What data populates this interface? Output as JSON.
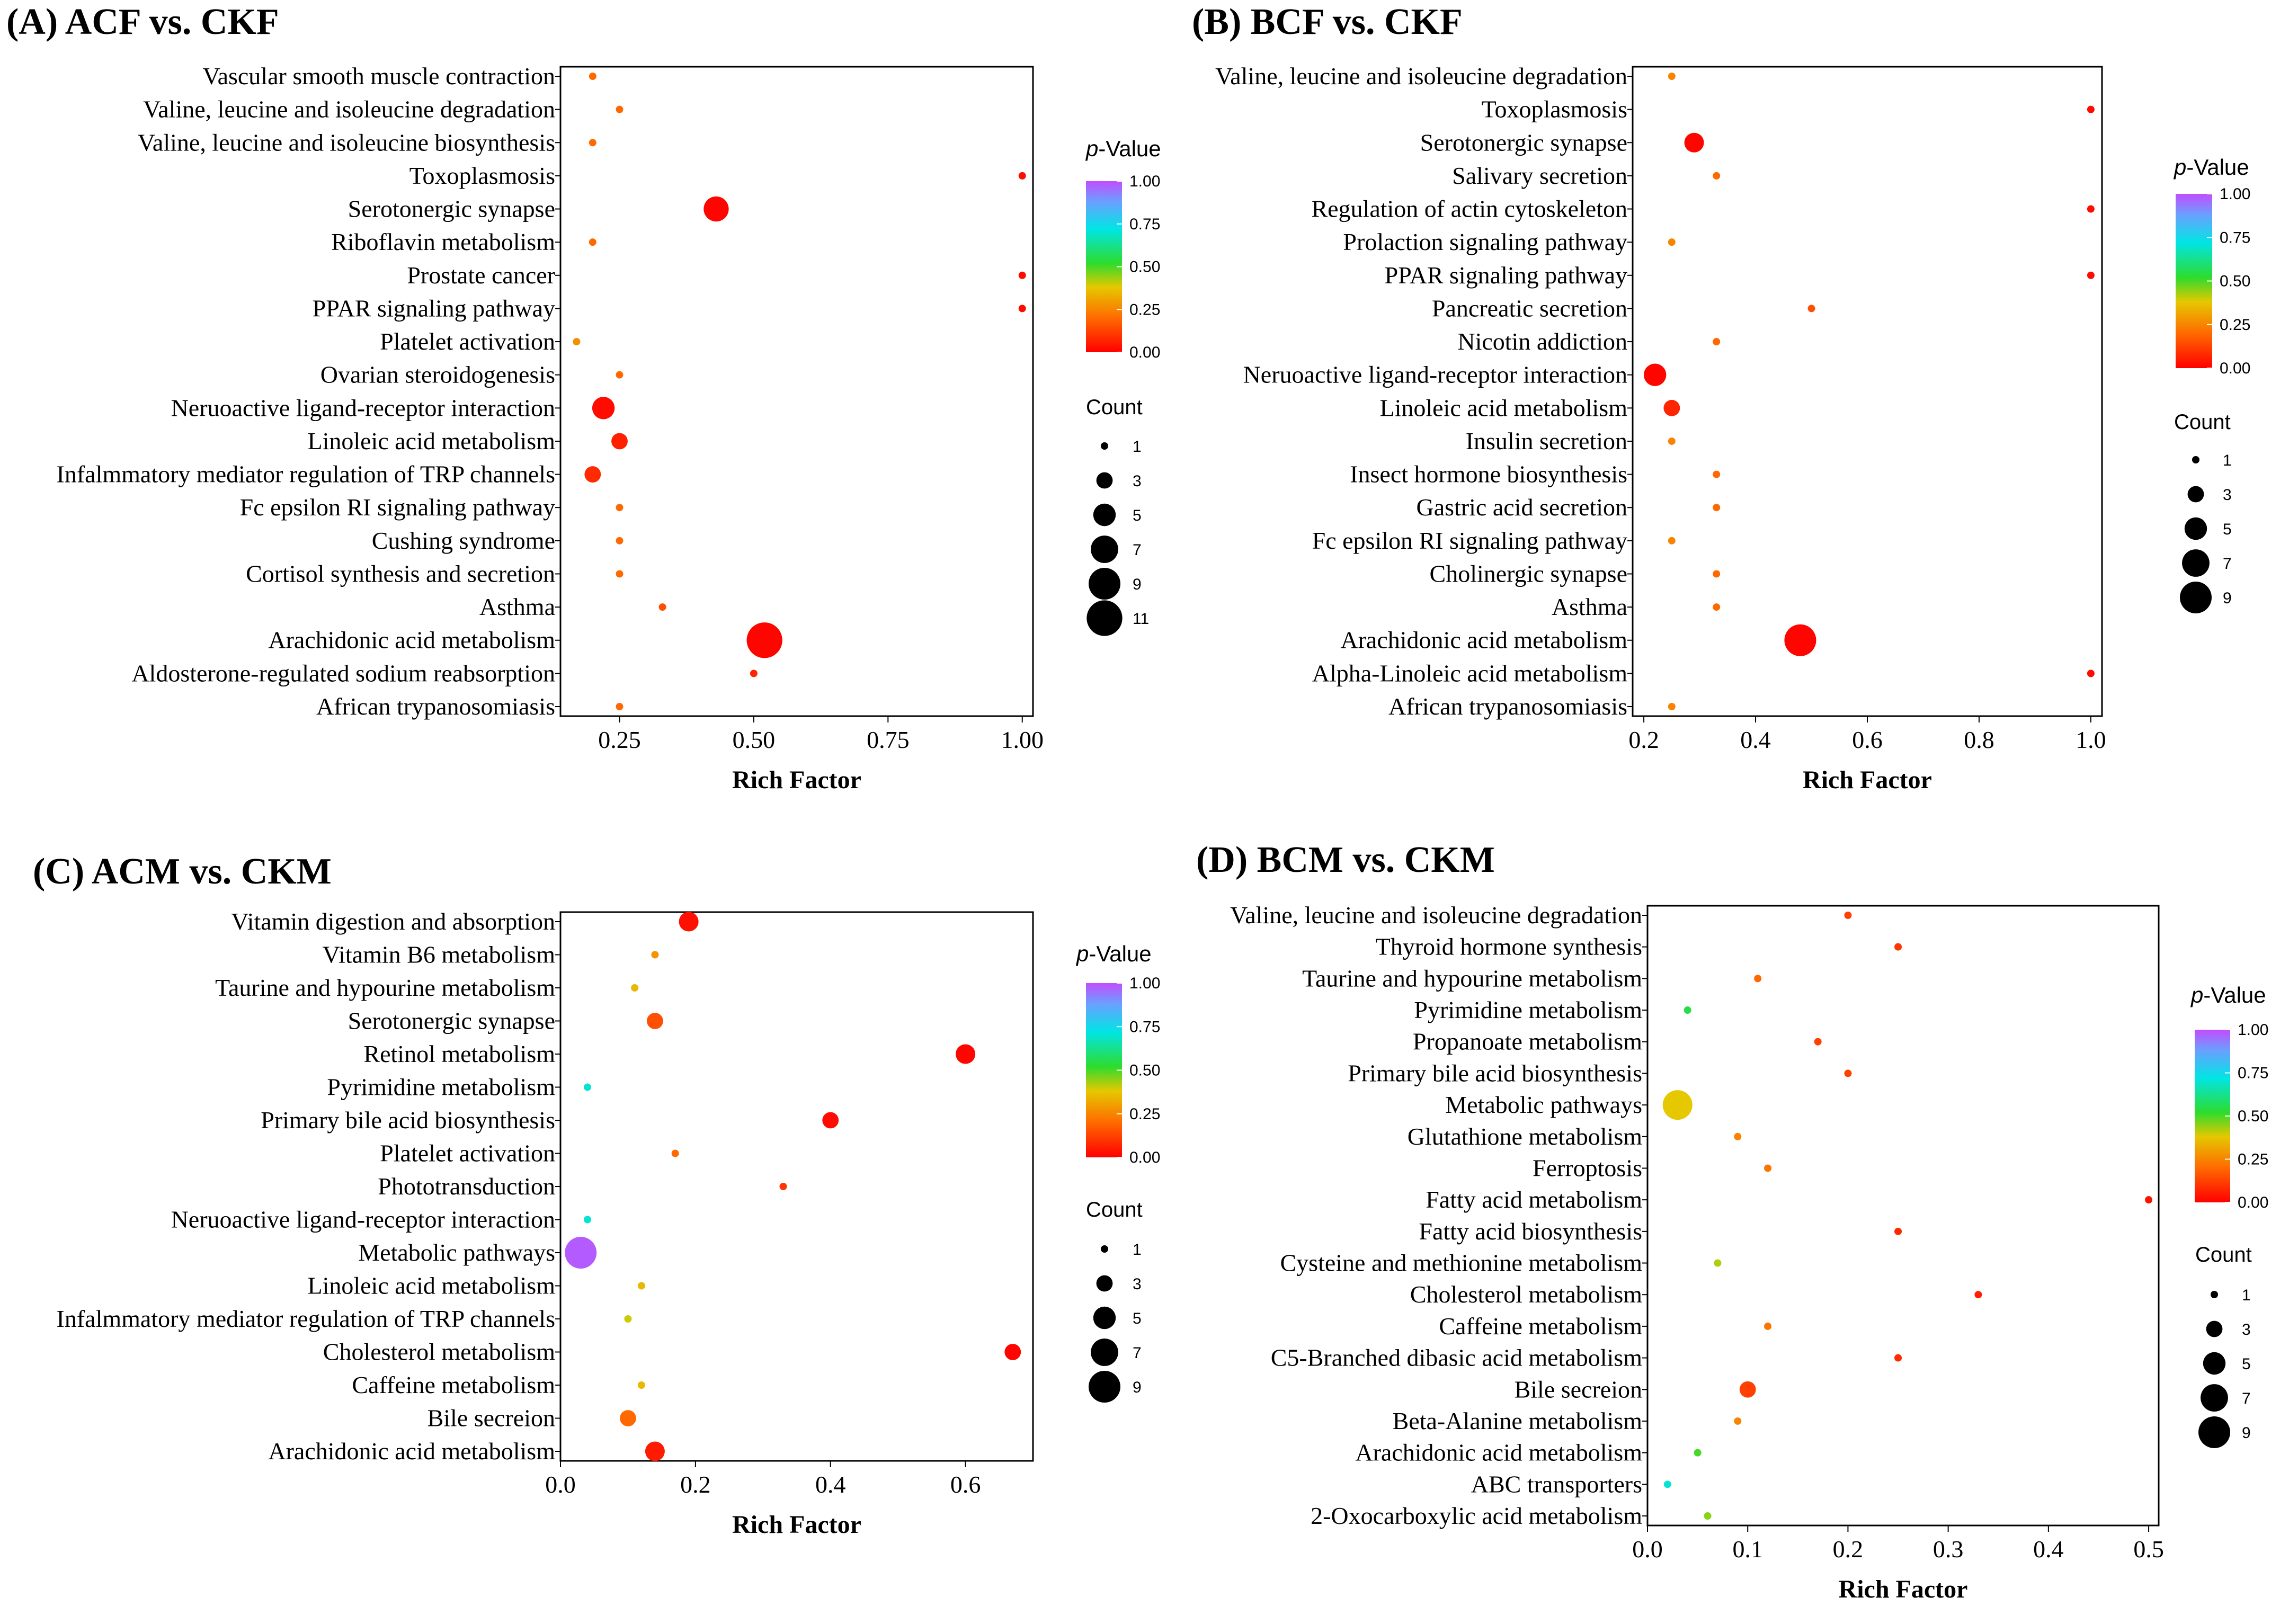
{
  "chart_data": [
    {
      "type": "scatter",
      "title": "(A) ACF vs. CKF",
      "xlabel": "Rich Factor",
      "ylabel": "",
      "xlim": [
        0.14,
        1.02
      ],
      "xticks": [
        "0.25",
        "0.50",
        "0.75",
        "1.00"
      ],
      "xtick_values": [
        0.25,
        0.5,
        0.75,
        1.0
      ],
      "color_legend": {
        "title_prefix": "p",
        "title_suffix": "-Value",
        "ticks": [
          "1.00",
          "0.75",
          "0.50",
          "0.25",
          "0.00"
        ]
      },
      "size_legend": {
        "title": "Count",
        "labels": [
          "1",
          "3",
          "5",
          "7",
          "9",
          "11"
        ],
        "values": [
          1,
          3,
          5,
          7,
          9,
          11
        ]
      },
      "points": [
        {
          "pathway": "Vascular smooth muscle contraction",
          "rich_factor": 0.2,
          "p_value": 0.2,
          "count": 1
        },
        {
          "pathway": "Valine, leucine and isoleucine degradation",
          "rich_factor": 0.25,
          "p_value": 0.2,
          "count": 1
        },
        {
          "pathway": "Valine, leucine and isoleucine biosynthesis",
          "rich_factor": 0.2,
          "p_value": 0.2,
          "count": 1
        },
        {
          "pathway": "Toxoplasmosis",
          "rich_factor": 1.0,
          "p_value": 0.02,
          "count": 1
        },
        {
          "pathway": "Serotonergic synapse",
          "rich_factor": 0.43,
          "p_value": 0.01,
          "count": 6
        },
        {
          "pathway": "Riboflavin metabolism",
          "rich_factor": 0.2,
          "p_value": 0.2,
          "count": 1
        },
        {
          "pathway": "Prostate cancer",
          "rich_factor": 1.0,
          "p_value": 0.02,
          "count": 1
        },
        {
          "pathway": "PPAR signaling pathway",
          "rich_factor": 1.0,
          "p_value": 0.02,
          "count": 1
        },
        {
          "pathway": "Platelet activation",
          "rich_factor": 0.17,
          "p_value": 0.27,
          "count": 1
        },
        {
          "pathway": "Ovarian steroidogenesis",
          "rich_factor": 0.25,
          "p_value": 0.2,
          "count": 1
        },
        {
          "pathway": "Neruoactive ligand-receptor interaction",
          "rich_factor": 0.22,
          "p_value": 0.02,
          "count": 5
        },
        {
          "pathway": "Linoleic acid metabolism",
          "rich_factor": 0.25,
          "p_value": 0.06,
          "count": 3
        },
        {
          "pathway": "Infalmmatory mediator regulation of TRP channels",
          "rich_factor": 0.2,
          "p_value": 0.08,
          "count": 3
        },
        {
          "pathway": "Fc epsilon RI signaling pathway",
          "rich_factor": 0.25,
          "p_value": 0.2,
          "count": 1
        },
        {
          "pathway": "Cushing syndrome",
          "rich_factor": 0.25,
          "p_value": 0.2,
          "count": 1
        },
        {
          "pathway": "Cortisol synthesis and secretion",
          "rich_factor": 0.25,
          "p_value": 0.2,
          "count": 1
        },
        {
          "pathway": "Asthma",
          "rich_factor": 0.33,
          "p_value": 0.15,
          "count": 1
        },
        {
          "pathway": "Arachidonic acid metabolism",
          "rich_factor": 0.52,
          "p_value": 0.01,
          "count": 11
        },
        {
          "pathway": "Aldosterone-regulated sodium reabsorption",
          "rich_factor": 0.5,
          "p_value": 0.07,
          "count": 1
        },
        {
          "pathway": "African trypanosomiasis",
          "rich_factor": 0.25,
          "p_value": 0.2,
          "count": 1
        }
      ]
    },
    {
      "type": "scatter",
      "title": "(B) BCF vs. CKF",
      "xlabel": "Rich Factor",
      "ylabel": "",
      "xlim": [
        0.18,
        1.02
      ],
      "xticks": [
        "0.2",
        "0.4",
        "0.6",
        "0.8",
        "1.0"
      ],
      "xtick_values": [
        0.2,
        0.4,
        0.6,
        0.8,
        1.0
      ],
      "color_legend": {
        "title_prefix": "p",
        "title_suffix": "-Value",
        "ticks": [
          "1.00",
          "0.75",
          "0.50",
          "0.25",
          "0.00"
        ]
      },
      "size_legend": {
        "title": "Count",
        "labels": [
          "1",
          "3",
          "5",
          "7",
          "9"
        ],
        "values": [
          1,
          3,
          5,
          7,
          9
        ]
      },
      "points": [
        {
          "pathway": "Valine, leucine and isoleucine degradation",
          "rich_factor": 0.25,
          "p_value": 0.25,
          "count": 1
        },
        {
          "pathway": "Toxoplasmosis",
          "rich_factor": 1.0,
          "p_value": 0.02,
          "count": 1
        },
        {
          "pathway": "Serotonergic synapse",
          "rich_factor": 0.29,
          "p_value": 0.01,
          "count": 4
        },
        {
          "pathway": "Salivary secretion",
          "rich_factor": 0.33,
          "p_value": 0.2,
          "count": 1
        },
        {
          "pathway": "Regulation of actin cytoskeleton",
          "rich_factor": 1.0,
          "p_value": 0.02,
          "count": 1
        },
        {
          "pathway": "Prolaction signaling pathway",
          "rich_factor": 0.25,
          "p_value": 0.25,
          "count": 1
        },
        {
          "pathway": "PPAR signaling pathway",
          "rich_factor": 1.0,
          "p_value": 0.02,
          "count": 1
        },
        {
          "pathway": "Pancreatic secretion",
          "rich_factor": 0.5,
          "p_value": 0.15,
          "count": 1
        },
        {
          "pathway": "Nicotin addiction",
          "rich_factor": 0.33,
          "p_value": 0.2,
          "count": 1
        },
        {
          "pathway": "Neruoactive ligand-receptor interaction",
          "rich_factor": 0.22,
          "p_value": 0.01,
          "count": 5
        },
        {
          "pathway": "Linoleic acid metabolism",
          "rich_factor": 0.25,
          "p_value": 0.07,
          "count": 3
        },
        {
          "pathway": "Insulin secretion",
          "rich_factor": 0.25,
          "p_value": 0.25,
          "count": 1
        },
        {
          "pathway": "Insect hormone biosynthesis",
          "rich_factor": 0.33,
          "p_value": 0.2,
          "count": 1
        },
        {
          "pathway": "Gastric acid secretion",
          "rich_factor": 0.33,
          "p_value": 0.2,
          "count": 1
        },
        {
          "pathway": "Fc epsilon RI signaling pathway",
          "rich_factor": 0.25,
          "p_value": 0.25,
          "count": 1
        },
        {
          "pathway": "Cholinergic synapse",
          "rich_factor": 0.33,
          "p_value": 0.2,
          "count": 1
        },
        {
          "pathway": "Asthma",
          "rich_factor": 0.33,
          "p_value": 0.2,
          "count": 1
        },
        {
          "pathway": "Arachidonic acid metabolism",
          "rich_factor": 0.48,
          "p_value": 0.01,
          "count": 9
        },
        {
          "pathway": "Alpha-Linoleic acid metabolism",
          "rich_factor": 1.0,
          "p_value": 0.02,
          "count": 1
        },
        {
          "pathway": "African trypanosomiasis",
          "rich_factor": 0.25,
          "p_value": 0.25,
          "count": 1
        }
      ]
    },
    {
      "type": "scatter",
      "title": "(C) ACM vs. CKM",
      "xlabel": "Rich Factor",
      "ylabel": "",
      "xlim": [
        0.0,
        0.7
      ],
      "xticks": [
        "0.0",
        "0.2",
        "0.4",
        "0.6"
      ],
      "xtick_values": [
        0.0,
        0.2,
        0.4,
        0.6
      ],
      "color_legend": {
        "title_prefix": "p",
        "title_suffix": "-Value",
        "ticks": [
          "1.00",
          "0.75",
          "0.50",
          "0.25",
          "0.00"
        ]
      },
      "size_legend": {
        "title": "Count",
        "labels": [
          "1",
          "3",
          "5",
          "7",
          "9"
        ],
        "values": [
          1,
          3,
          5,
          7,
          9
        ]
      },
      "points": [
        {
          "pathway": "Vitamin digestion and absorption",
          "rich_factor": 0.19,
          "p_value": 0.03,
          "count": 4
        },
        {
          "pathway": "Vitamin B6 metabolism",
          "rich_factor": 0.14,
          "p_value": 0.28,
          "count": 1
        },
        {
          "pathway": "Taurine and hypourine metabolism",
          "rich_factor": 0.11,
          "p_value": 0.35,
          "count": 1
        },
        {
          "pathway": "Serotonergic synapse",
          "rich_factor": 0.14,
          "p_value": 0.15,
          "count": 3
        },
        {
          "pathway": "Retinol metabolism",
          "rich_factor": 0.6,
          "p_value": 0.01,
          "count": 4
        },
        {
          "pathway": "Pyrimidine metabolism",
          "rich_factor": 0.04,
          "p_value": 0.7,
          "count": 1
        },
        {
          "pathway": "Primary bile acid biosynthesis",
          "rich_factor": 0.4,
          "p_value": 0.02,
          "count": 3
        },
        {
          "pathway": "Platelet activation",
          "rich_factor": 0.17,
          "p_value": 0.2,
          "count": 1
        },
        {
          "pathway": "Phototransduction",
          "rich_factor": 0.33,
          "p_value": 0.1,
          "count": 1
        },
        {
          "pathway": "Neruoactive ligand-receptor interaction",
          "rich_factor": 0.04,
          "p_value": 0.7,
          "count": 1
        },
        {
          "pathway": "Metabolic pathways",
          "rich_factor": 0.03,
          "p_value": 0.98,
          "count": 9
        },
        {
          "pathway": "Linoleic acid metabolism",
          "rich_factor": 0.12,
          "p_value": 0.35,
          "count": 1
        },
        {
          "pathway": "Infalmmatory mediator regulation of TRP channels",
          "rich_factor": 0.1,
          "p_value": 0.4,
          "count": 1
        },
        {
          "pathway": "Cholesterol metabolism",
          "rich_factor": 0.67,
          "p_value": 0.01,
          "count": 3
        },
        {
          "pathway": "Caffeine metabolism",
          "rich_factor": 0.12,
          "p_value": 0.35,
          "count": 1
        },
        {
          "pathway": "Bile secreion",
          "rich_factor": 0.1,
          "p_value": 0.2,
          "count": 3
        },
        {
          "pathway": "Arachidonic acid metabolism",
          "rich_factor": 0.14,
          "p_value": 0.05,
          "count": 4
        }
      ]
    },
    {
      "type": "scatter",
      "title": "(D) BCM vs. CKM",
      "xlabel": "Rich Factor",
      "ylabel": "",
      "xlim": [
        0.0,
        0.51
      ],
      "xticks": [
        "0.0",
        "0.1",
        "0.2",
        "0.3",
        "0.4",
        "0.5"
      ],
      "xtick_values": [
        0.0,
        0.1,
        0.2,
        0.3,
        0.4,
        0.5
      ],
      "color_legend": {
        "title_prefix": "p",
        "title_suffix": "-Value",
        "ticks": [
          "1.00",
          "0.75",
          "0.50",
          "0.25",
          "0.00"
        ]
      },
      "size_legend": {
        "title": "Count",
        "labels": [
          "1",
          "3",
          "5",
          "7",
          "9"
        ],
        "values": [
          1,
          3,
          5,
          7,
          9
        ]
      },
      "points": [
        {
          "pathway": "Valine, leucine and isoleucine degradation",
          "rich_factor": 0.2,
          "p_value": 0.12,
          "count": 1
        },
        {
          "pathway": "Thyroid hormone synthesis",
          "rich_factor": 0.25,
          "p_value": 0.1,
          "count": 1
        },
        {
          "pathway": "Taurine and hypourine metabolism",
          "rich_factor": 0.11,
          "p_value": 0.2,
          "count": 1
        },
        {
          "pathway": "Pyrimidine metabolism",
          "rich_factor": 0.04,
          "p_value": 0.55,
          "count": 1
        },
        {
          "pathway": "Propanoate metabolism",
          "rich_factor": 0.17,
          "p_value": 0.12,
          "count": 1
        },
        {
          "pathway": "Primary bile acid biosynthesis",
          "rich_factor": 0.2,
          "p_value": 0.12,
          "count": 1
        },
        {
          "pathway": "Metabolic pathways",
          "rich_factor": 0.03,
          "p_value": 0.38,
          "count": 8
        },
        {
          "pathway": "Glutathione metabolism",
          "rich_factor": 0.09,
          "p_value": 0.25,
          "count": 1
        },
        {
          "pathway": "Ferroptosis",
          "rich_factor": 0.12,
          "p_value": 0.22,
          "count": 1
        },
        {
          "pathway": "Fatty acid metabolism",
          "rich_factor": 0.5,
          "p_value": 0.03,
          "count": 1
        },
        {
          "pathway": "Fatty acid biosynthesis",
          "rich_factor": 0.25,
          "p_value": 0.08,
          "count": 1
        },
        {
          "pathway": "Cysteine and methionine metabolism",
          "rich_factor": 0.07,
          "p_value": 0.42,
          "count": 1
        },
        {
          "pathway": "Cholesterol metabolism",
          "rich_factor": 0.33,
          "p_value": 0.06,
          "count": 1
        },
        {
          "pathway": "Caffeine metabolism",
          "rich_factor": 0.12,
          "p_value": 0.22,
          "count": 1
        },
        {
          "pathway": "C5-Branched dibasic acid metabolism",
          "rich_factor": 0.25,
          "p_value": 0.08,
          "count": 1
        },
        {
          "pathway": "Bile secreion",
          "rich_factor": 0.1,
          "p_value": 0.12,
          "count": 3
        },
        {
          "pathway": "Beta-Alanine metabolism",
          "rich_factor": 0.09,
          "p_value": 0.25,
          "count": 1
        },
        {
          "pathway": "Arachidonic acid metabolism",
          "rich_factor": 0.05,
          "p_value": 0.5,
          "count": 1
        },
        {
          "pathway": "ABC transporters",
          "rich_factor": 0.02,
          "p_value": 0.7,
          "count": 1
        },
        {
          "pathway": "2-Oxocarboxylic acid metabolism",
          "rich_factor": 0.06,
          "p_value": 0.45,
          "count": 1
        }
      ]
    }
  ]
}
